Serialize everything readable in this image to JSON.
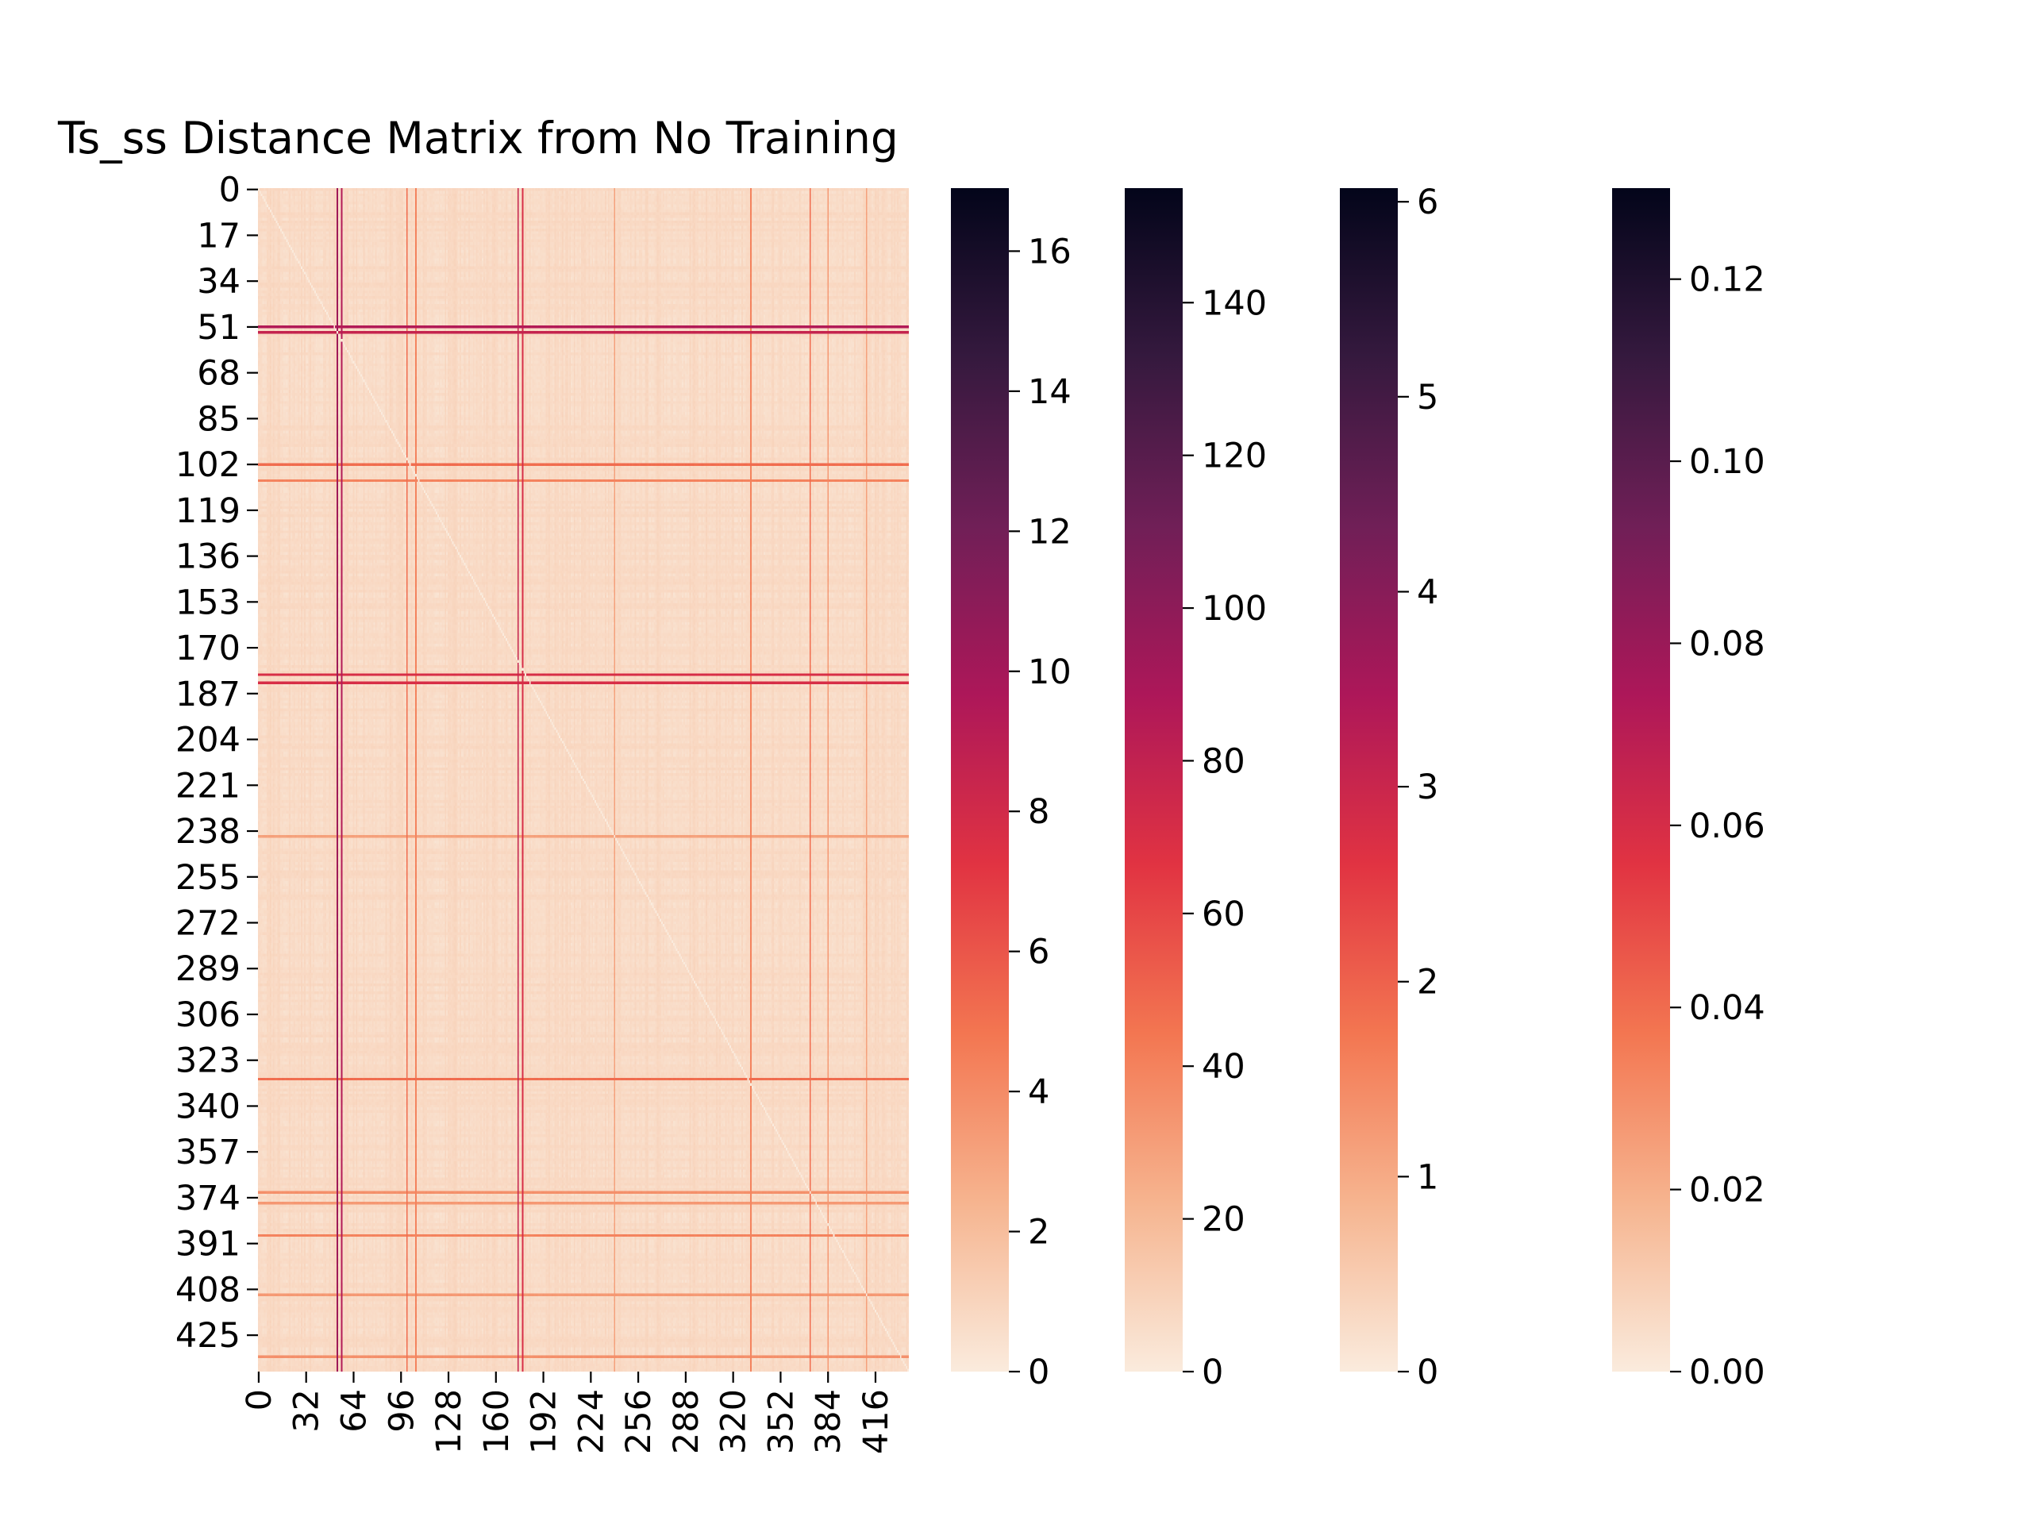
{
  "chart_data": {
    "type": "heatmap",
    "title": "Ts_ss Distance Matrix from No Training",
    "matrix_size": 439,
    "x_ticks": [
      0,
      32,
      64,
      96,
      128,
      160,
      192,
      224,
      256,
      288,
      320,
      352,
      384,
      416
    ],
    "y_ticks": [
      0,
      17,
      34,
      51,
      68,
      85,
      102,
      119,
      136,
      153,
      170,
      187,
      204,
      221,
      238,
      255,
      272,
      289,
      306,
      323,
      340,
      357,
      374,
      391,
      408,
      425
    ],
    "colormap": "rocket_r",
    "colormap_stops": [
      "#faebdd",
      "#f6b48f",
      "#f37651",
      "#e13342",
      "#ad1759",
      "#701f57",
      "#35193e",
      "#03051a"
    ],
    "colorbars": [
      {
        "vmin": 0,
        "vmax": 16.9,
        "ticks": [
          0,
          2,
          4,
          6,
          8,
          10,
          12,
          14,
          16
        ],
        "labels": [
          "0",
          "2",
          "4",
          "6",
          "8",
          "10",
          "12",
          "14",
          "16"
        ]
      },
      {
        "vmin": 0,
        "vmax": 155,
        "ticks": [
          0,
          20,
          40,
          60,
          80,
          100,
          120,
          140
        ],
        "labels": [
          "0",
          "20",
          "40",
          "60",
          "80",
          "100",
          "120",
          "140"
        ]
      },
      {
        "vmin": 0,
        "vmax": 6.07,
        "ticks": [
          0,
          1,
          2,
          3,
          4,
          5,
          6
        ],
        "labels": [
          "0",
          "1",
          "2",
          "3",
          "4",
          "5",
          "6"
        ]
      },
      {
        "vmin": 0,
        "vmax": 0.13,
        "ticks": [
          0,
          0.02,
          0.04,
          0.06,
          0.08,
          0.1,
          0.12
        ],
        "labels": [
          "0.00",
          "0.02",
          "0.04",
          "0.06",
          "0.08",
          "0.10",
          "0.12"
        ]
      }
    ],
    "highlighted_rows": [
      {
        "index": 51,
        "level": 0.55
      },
      {
        "index": 53,
        "level": 0.5
      },
      {
        "index": 102,
        "level": 0.3
      },
      {
        "index": 108,
        "level": 0.25
      },
      {
        "index": 180,
        "level": 0.45
      },
      {
        "index": 183,
        "level": 0.45
      },
      {
        "index": 240,
        "level": 0.18
      },
      {
        "index": 330,
        "level": 0.3
      },
      {
        "index": 372,
        "level": 0.22
      },
      {
        "index": 376,
        "level": 0.2
      },
      {
        "index": 388,
        "level": 0.25
      },
      {
        "index": 410,
        "level": 0.2
      },
      {
        "index": 433,
        "level": 0.22
      }
    ],
    "highlighted_cols": [
      {
        "index": 53,
        "level": 0.6
      },
      {
        "index": 56,
        "level": 0.55
      },
      {
        "index": 100,
        "level": 0.3
      },
      {
        "index": 106,
        "level": 0.25
      },
      {
        "index": 175,
        "level": 0.5
      },
      {
        "index": 178,
        "level": 0.45
      },
      {
        "index": 240,
        "level": 0.18
      },
      {
        "index": 332,
        "level": 0.25
      },
      {
        "index": 372,
        "level": 0.3
      },
      {
        "index": 384,
        "level": 0.2
      },
      {
        "index": 410,
        "level": 0.18
      }
    ]
  }
}
